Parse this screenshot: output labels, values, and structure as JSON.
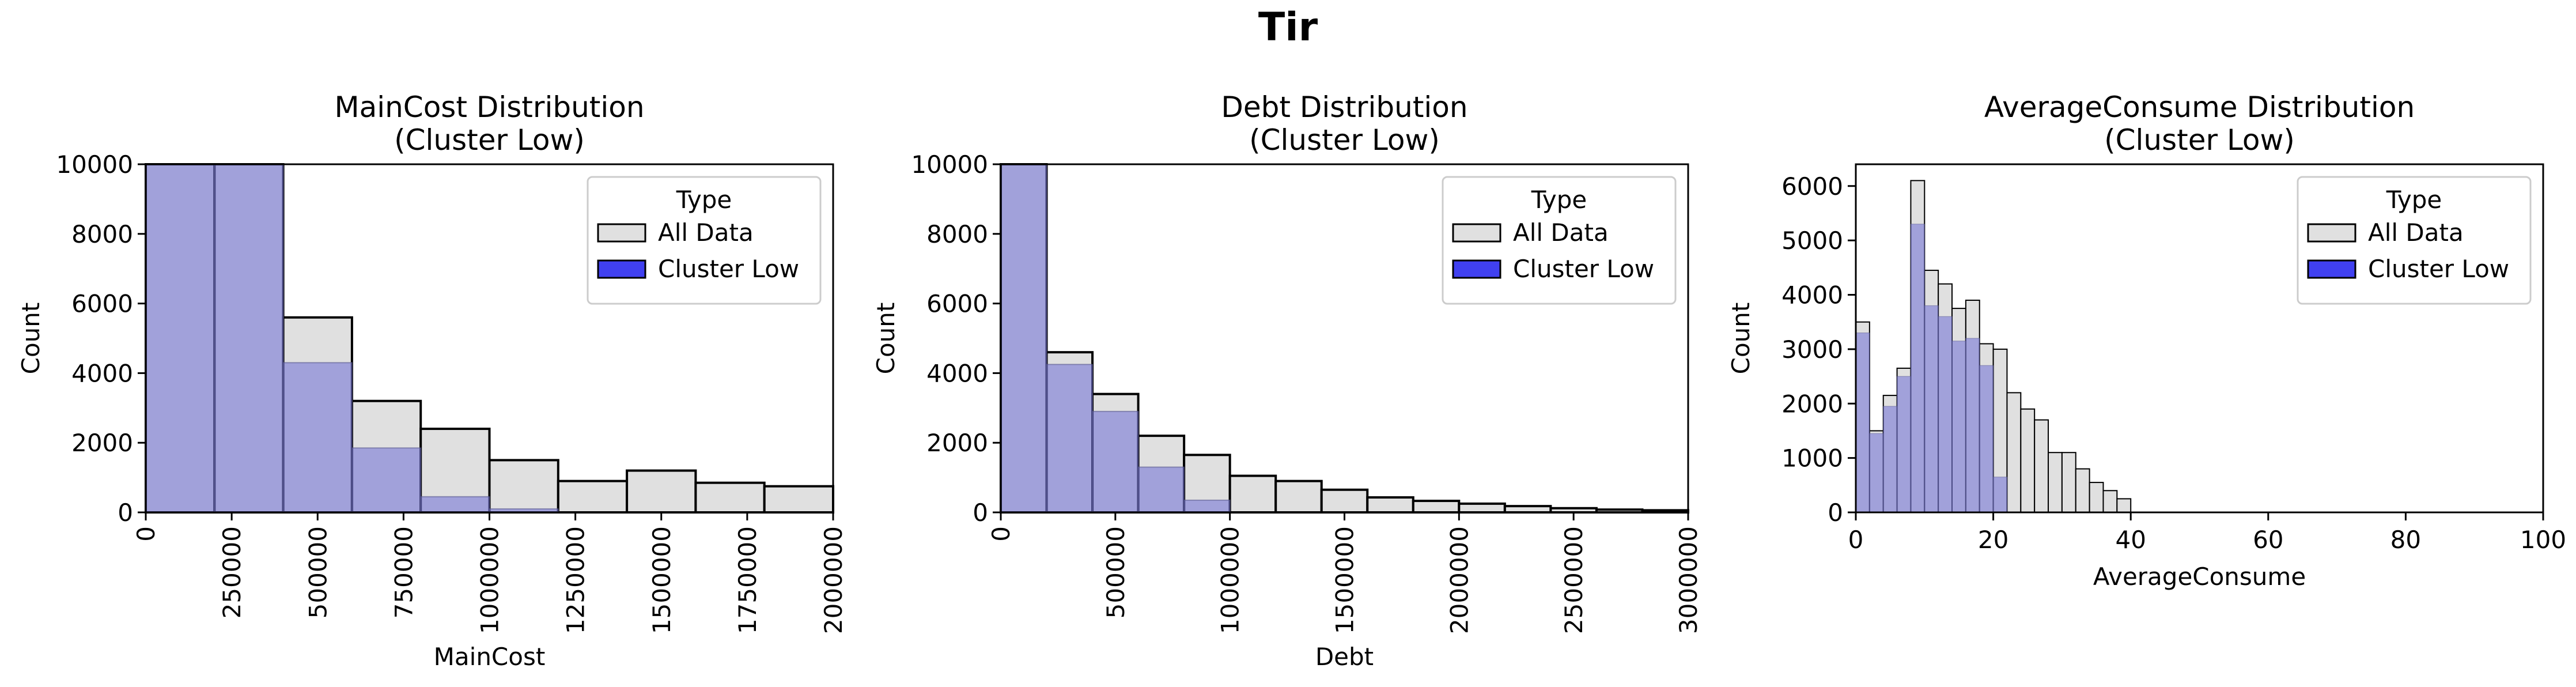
{
  "suptitle": "Tir",
  "legend": {
    "title": "Type",
    "entries": [
      {
        "label": "All Data",
        "color": "#e0e0e0"
      },
      {
        "label": "Cluster Low",
        "color": "#4040f0"
      }
    ]
  },
  "colors": {
    "all_fill": "#e0e0e0",
    "cluster_fill": "#a9a9e3",
    "cluster_legend": "#4040f0",
    "edge": "#000000"
  },
  "chart_data": [
    {
      "type": "bar",
      "title": "MainCost Distribution\n(Cluster Low)",
      "xlabel": "MainCost",
      "ylabel": "Count",
      "xlim": [
        0,
        2000000
      ],
      "ylim": [
        0,
        10000
      ],
      "xticks": [
        0,
        250000,
        500000,
        750000,
        1000000,
        1250000,
        1500000,
        1750000,
        2000000
      ],
      "xtick_labels": [
        "0",
        "250000",
        "500000",
        "750000",
        "1000000",
        "1250000",
        "1500000",
        "1750000",
        "2000000"
      ],
      "xtick_rotation": 90,
      "yticks": [
        0,
        2000,
        4000,
        6000,
        8000,
        10000
      ],
      "ytick_labels": [
        "0",
        "2000",
        "4000",
        "6000",
        "8000",
        "10000"
      ],
      "bin_edges": [
        0,
        200000,
        400000,
        600000,
        800000,
        1000000,
        1200000,
        1400000,
        1600000,
        1800000,
        2000000
      ],
      "series": [
        {
          "name": "All Data",
          "values": [
            10000,
            10000,
            5600,
            3200,
            2400,
            1500,
            900,
            1200,
            850,
            750
          ]
        },
        {
          "name": "Cluster Low",
          "values": [
            10000,
            10000,
            4300,
            1850,
            450,
            100,
            0,
            0,
            0,
            0
          ]
        }
      ],
      "grid": false,
      "legend_position": "upper right"
    },
    {
      "type": "bar",
      "title": "Debt Distribution\n(Cluster Low)",
      "xlabel": "Debt",
      "ylabel": "Count",
      "xlim": [
        0,
        3000000
      ],
      "ylim": [
        0,
        10000
      ],
      "xticks": [
        0,
        500000,
        1000000,
        1500000,
        2000000,
        2500000,
        3000000
      ],
      "xtick_labels": [
        "0",
        "500000",
        "1000000",
        "1500000",
        "2000000",
        "2500000",
        "3000000"
      ],
      "xtick_rotation": 90,
      "yticks": [
        0,
        2000,
        4000,
        6000,
        8000,
        10000
      ],
      "ytick_labels": [
        "0",
        "2000",
        "4000",
        "6000",
        "8000",
        "10000"
      ],
      "bin_edges": [
        0,
        200000,
        400000,
        600000,
        800000,
        1000000,
        1200000,
        1400000,
        1600000,
        1800000,
        2000000,
        2200000,
        2400000,
        2600000,
        2800000,
        3000000
      ],
      "series": [
        {
          "name": "All Data",
          "values": [
            10000,
            4600,
            3400,
            2200,
            1650,
            1050,
            900,
            650,
            430,
            330,
            250,
            180,
            120,
            80,
            60
          ]
        },
        {
          "name": "Cluster Low",
          "values": [
            10000,
            4250,
            2900,
            1300,
            350,
            0,
            0,
            0,
            0,
            0,
            0,
            0,
            0,
            0,
            0
          ]
        }
      ],
      "grid": false,
      "legend_position": "upper right"
    },
    {
      "type": "bar",
      "title": "AverageConsume Distribution\n(Cluster Low)",
      "xlabel": "AverageConsume",
      "ylabel": "Count",
      "xlim": [
        0,
        100
      ],
      "ylim": [
        0,
        6400
      ],
      "xticks": [
        0,
        20,
        40,
        60,
        80,
        100
      ],
      "xtick_labels": [
        "0",
        "20",
        "40",
        "60",
        "80",
        "100"
      ],
      "xtick_rotation": 0,
      "yticks": [
        0,
        1000,
        2000,
        3000,
        4000,
        5000,
        6000
      ],
      "ytick_labels": [
        "0",
        "1000",
        "2000",
        "3000",
        "4000",
        "5000",
        "6000"
      ],
      "bin_edges": [
        0,
        2,
        4,
        6,
        8,
        10,
        12,
        14,
        16,
        18,
        20,
        22,
        24,
        26,
        28,
        30,
        32,
        34,
        36,
        38,
        40,
        42
      ],
      "series": [
        {
          "name": "All Data",
          "values": [
            3500,
            1500,
            2150,
            2650,
            6100,
            4450,
            4200,
            3750,
            3900,
            3100,
            3000,
            2200,
            1900,
            1700,
            1100,
            1100,
            800,
            550,
            400,
            250,
            0
          ]
        },
        {
          "name": "Cluster Low",
          "values": [
            3300,
            1450,
            1950,
            2500,
            5300,
            3800,
            3600,
            3150,
            3200,
            2700,
            650,
            0,
            0,
            0,
            0,
            0,
            0,
            0,
            0,
            0,
            0
          ]
        }
      ],
      "grid": false,
      "legend_position": "upper right"
    }
  ]
}
